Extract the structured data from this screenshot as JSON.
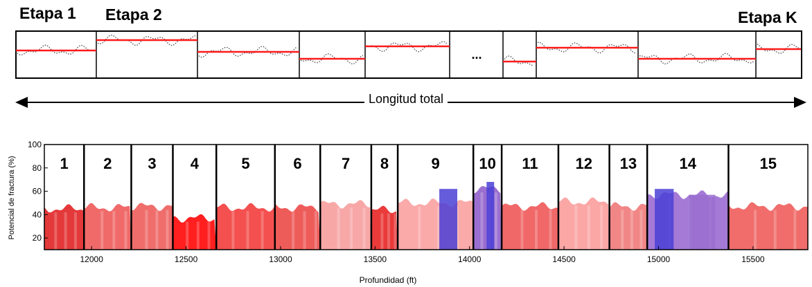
{
  "labels": {
    "etapa1": "Etapa 1",
    "etapa2": "Etapa 2",
    "etapaK": "Etapa K",
    "ellipsis": "...",
    "longitud": "Longitud total"
  },
  "colors": {
    "red_line": "#ff1a1a",
    "dotted": "#555555",
    "purple": "#9a6fd0",
    "blue": "#4a3fd6"
  },
  "chart_data": {
    "type": "area",
    "xlabel": "Profundidad  (ft)",
    "ylabel": "Potencial de fractura (%)",
    "xlim": [
      11750,
      15790
    ],
    "ylim": [
      10,
      100
    ],
    "xticks": [
      12000,
      12500,
      13000,
      13500,
      14000,
      14500,
      15000,
      15500
    ],
    "yticks": [
      20,
      40,
      60,
      80,
      100
    ],
    "stages": [
      {
        "label": "1",
        "start": 11750,
        "end": 11960,
        "fill": "#e4393a",
        "level": 45
      },
      {
        "label": "2",
        "start": 11960,
        "end": 12210,
        "fill": "#f06a6a",
        "level": 46
      },
      {
        "label": "3",
        "start": 12210,
        "end": 12430,
        "fill": "#ef6d6b",
        "level": 47
      },
      {
        "label": "4",
        "start": 12430,
        "end": 12660,
        "fill": "#ff1f1f",
        "level": 37
      },
      {
        "label": "5",
        "start": 12660,
        "end": 12970,
        "fill": "#f3504f",
        "level": 46
      },
      {
        "label": "6",
        "start": 12970,
        "end": 13210,
        "fill": "#ee5c5a",
        "level": 46
      },
      {
        "label": "7",
        "start": 13210,
        "end": 13480,
        "fill": "#f8a7a7",
        "level": 49
      },
      {
        "label": "8",
        "start": 13480,
        "end": 13620,
        "fill": "#ea3a3a",
        "level": 44
      },
      {
        "label": "9",
        "start": 13620,
        "end": 14020,
        "fill": "#faaaa9",
        "level": 50
      },
      {
        "label": "10",
        "start": 14020,
        "end": 14170,
        "fill": "#9a6fd0",
        "level": 62
      },
      {
        "label": "11",
        "start": 14170,
        "end": 14470,
        "fill": "#f06868",
        "level": 47
      },
      {
        "label": "12",
        "start": 14470,
        "end": 14740,
        "fill": "#faa7a6",
        "level": 51
      },
      {
        "label": "13",
        "start": 14740,
        "end": 14940,
        "fill": "#f08786",
        "level": 47
      },
      {
        "label": "14",
        "start": 14940,
        "end": 15370,
        "fill": "#a57ad6",
        "level": 57
      },
      {
        "label": "15",
        "start": 15370,
        "end": 15790,
        "fill": "#f06d6b",
        "level": 47
      }
    ]
  }
}
